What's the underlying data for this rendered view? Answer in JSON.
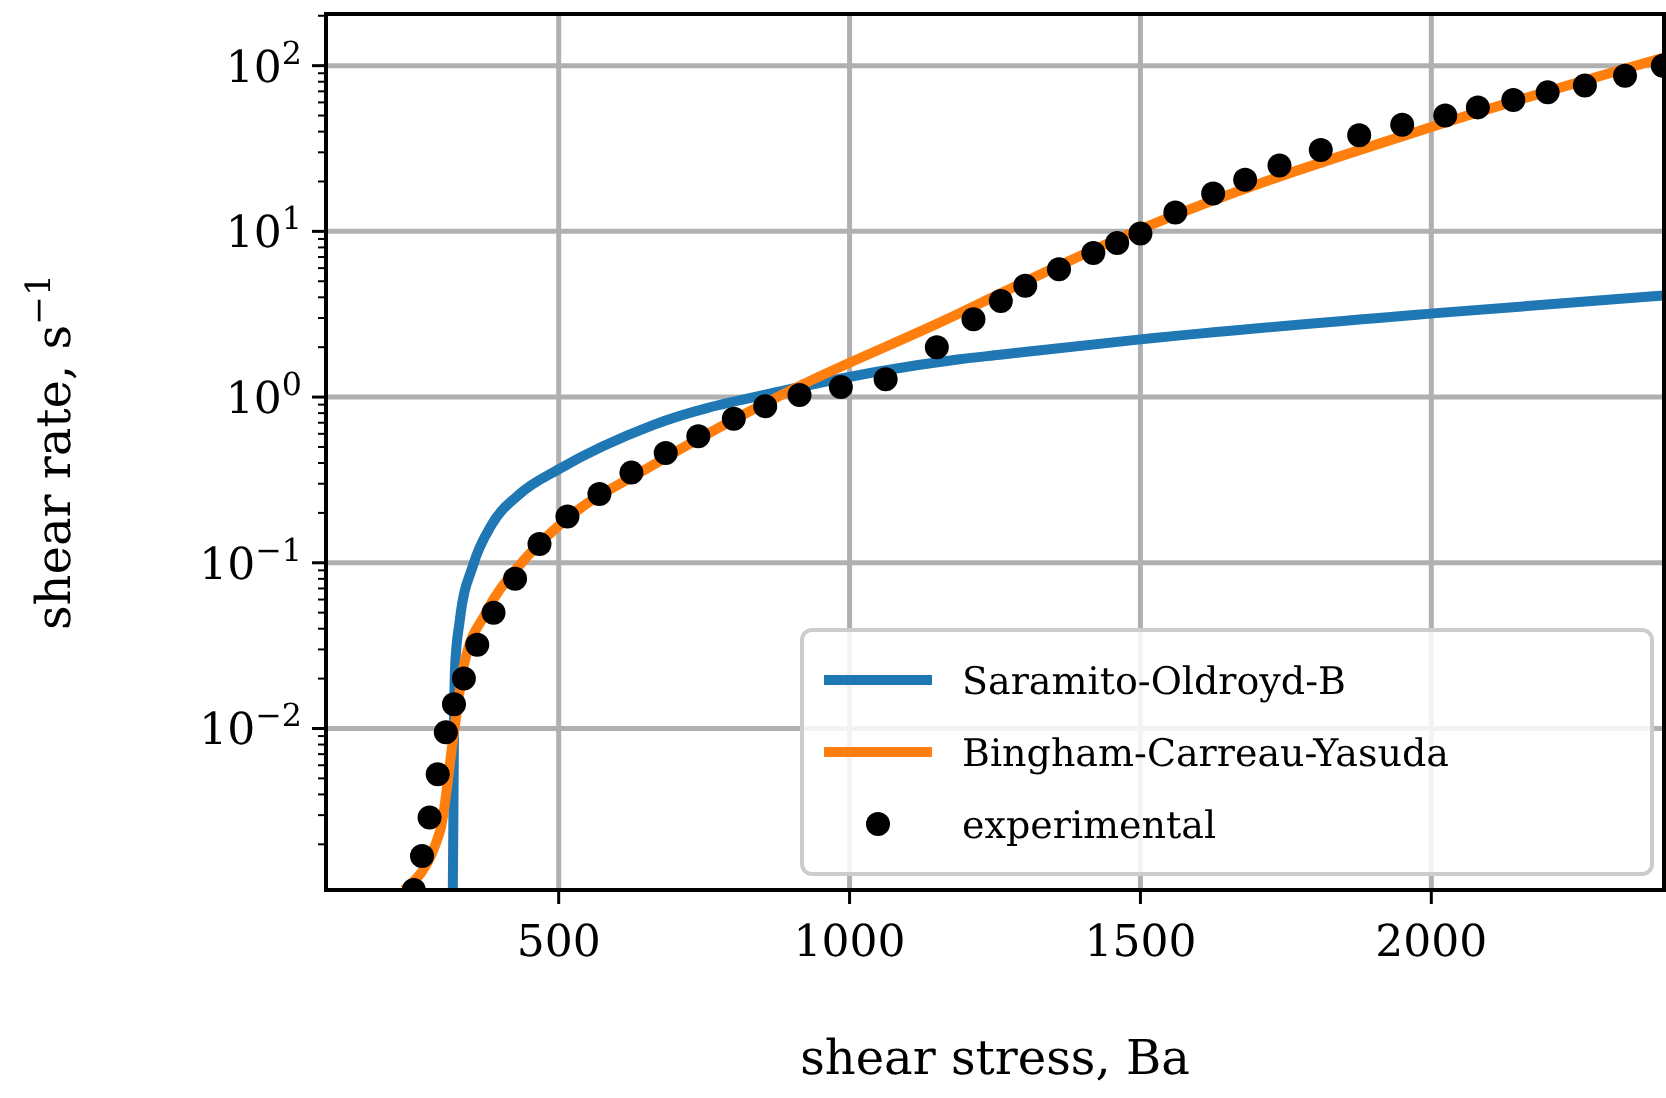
{
  "chart_data": {
    "type": "line",
    "xlabel": "shear stress, Ba",
    "ylabel": "shear rate, s$^{−1}$",
    "log": "y",
    "grid": true,
    "legend": "bottom right",
    "xlim": [
      100,
      2400
    ],
    "xticks": [
      500,
      1000,
      1500,
      2000
    ],
    "ylim": [
      0.00106,
      205
    ],
    "yticks": [
      {
        "value": 0.002,
        "label": null
      },
      {
        "value": 0.003,
        "label": null
      },
      {
        "value": 0.004,
        "label": null
      },
      {
        "value": 0.005,
        "label": null
      },
      {
        "value": 0.006,
        "label": null
      },
      {
        "value": 0.007,
        "label": null
      },
      {
        "value": 0.008,
        "label": null
      },
      {
        "value": 0.009,
        "label": null
      },
      {
        "value": 0.01,
        "label": "10$^{−2}$"
      },
      {
        "value": 0.02,
        "label": null
      },
      {
        "value": 0.03,
        "label": null
      },
      {
        "value": 0.04,
        "label": null
      },
      {
        "value": 0.05,
        "label": null
      },
      {
        "value": 0.06,
        "label": null
      },
      {
        "value": 0.07,
        "label": null
      },
      {
        "value": 0.08,
        "label": null
      },
      {
        "value": 0.09,
        "label": null
      },
      {
        "value": 0.1,
        "label": "10$^{−1}$"
      },
      {
        "value": 0.2,
        "label": null
      },
      {
        "value": 0.3,
        "label": null
      },
      {
        "value": 0.4,
        "label": null
      },
      {
        "value": 0.5,
        "label": null
      },
      {
        "value": 0.6,
        "label": null
      },
      {
        "value": 0.7,
        "label": null
      },
      {
        "value": 0.8,
        "label": null
      },
      {
        "value": 0.9,
        "label": null
      },
      {
        "value": 1,
        "label": "10$^{0}$"
      },
      {
        "value": 2,
        "label": null
      },
      {
        "value": 3,
        "label": null
      },
      {
        "value": 4,
        "label": null
      },
      {
        "value": 5,
        "label": null
      },
      {
        "value": 6,
        "label": null
      },
      {
        "value": 7,
        "label": null
      },
      {
        "value": 8,
        "label": null
      },
      {
        "value": 9,
        "label": null
      },
      {
        "value": 10,
        "label": "10$^{1}$"
      },
      {
        "value": 20,
        "label": null
      },
      {
        "value": 30,
        "label": null
      },
      {
        "value": 40,
        "label": null
      },
      {
        "value": 50,
        "label": null
      },
      {
        "value": 60,
        "label": null
      },
      {
        "value": 70,
        "label": null
      },
      {
        "value": 80,
        "label": null
      },
      {
        "value": 90,
        "label": null
      },
      {
        "value": 100,
        "label": "10$^{2}$"
      },
      {
        "value": 200,
        "label": null
      }
    ],
    "series": [
      {
        "name": "Saramito-Oldroyd-B",
        "color": "#1f77b4",
        "x": [
          318,
          319,
          320,
          322,
          330,
          353,
          385,
          433,
          502,
          663,
          890,
          1189,
          1258,
          1500,
          2003,
          2400
        ],
        "values": [
          0.00106,
          0.003,
          0.01,
          0.024,
          0.045,
          0.097,
          0.17,
          0.26,
          0.37,
          0.68,
          1.1,
          1.69,
          1.8,
          2.23,
          3.2,
          4.1
        ]
      },
      {
        "name": "Bingham-Carreau-Yasuda",
        "color": "#ff7f0e",
        "x": [
          234,
          296,
          320,
          337,
          375,
          433,
          502,
          663,
          890,
          1189,
          1258,
          1500,
          2003,
          2400
        ],
        "values": [
          0.00106,
          0.0024,
          0.0095,
          0.024,
          0.05,
          0.097,
          0.17,
          0.39,
          1.06,
          3.2,
          4.2,
          10.3,
          43,
          112
        ]
      },
      {
        "name": "experimental",
        "type": "scatter",
        "color": "#000000",
        "marker": "circle",
        "x": [
          251,
          265,
          278,
          292,
          306,
          320,
          337,
          360,
          388,
          425,
          467,
          515,
          570,
          625,
          684,
          740,
          801,
          855,
          914,
          985,
          1062,
          1150,
          1213,
          1260,
          1302,
          1360,
          1419,
          1460,
          1500,
          1560,
          1625,
          1680,
          1739,
          1810,
          1876,
          1950,
          2024,
          2080,
          2141,
          2200,
          2264,
          2333,
          2398
        ],
        "values": [
          0.00106,
          0.0017,
          0.0029,
          0.0053,
          0.0095,
          0.014,
          0.02,
          0.032,
          0.05,
          0.08,
          0.13,
          0.19,
          0.26,
          0.35,
          0.46,
          0.58,
          0.74,
          0.88,
          1.03,
          1.15,
          1.28,
          2.0,
          2.95,
          3.8,
          4.7,
          5.9,
          7.4,
          8.5,
          9.7,
          13,
          16.9,
          20.5,
          25,
          31,
          38,
          44,
          50,
          56,
          62,
          69,
          76,
          87,
          100
        ]
      }
    ]
  }
}
